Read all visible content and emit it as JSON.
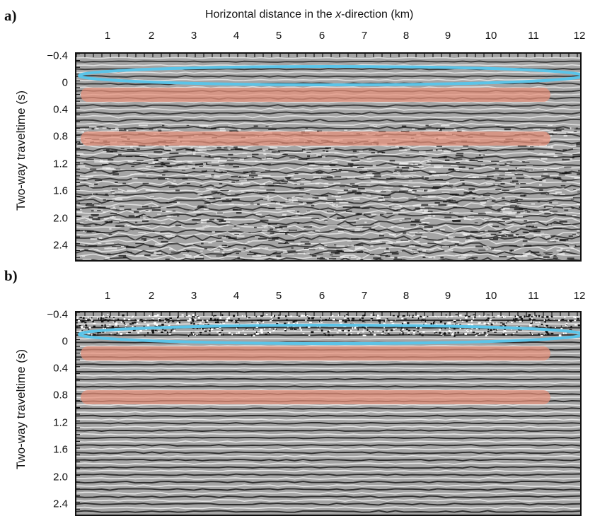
{
  "figure": {
    "x_axis_title": {
      "pre": "Horizontal distance in the ",
      "var": "x",
      "post": "-direction (km)"
    },
    "y_axis_title": "Two-way traveltime (s)",
    "x_ticks": [
      "1",
      "2",
      "3",
      "4",
      "5",
      "6",
      "7",
      "8",
      "9",
      "10",
      "11",
      "12"
    ],
    "y_ticks": [
      "−0.4",
      "0",
      "0.4",
      "0.8",
      "1.2",
      "1.6",
      "2.0",
      "2.4"
    ],
    "highlight_colors": {
      "ellipse": "#5bc4e8",
      "bands": "#e8907a"
    },
    "panels": [
      {
        "id": "a",
        "label": "a)",
        "section": "noisy",
        "description": "seismic-section"
      },
      {
        "id": "b",
        "label": "b)",
        "section": "denoised",
        "description": "seismic-section"
      }
    ]
  }
}
